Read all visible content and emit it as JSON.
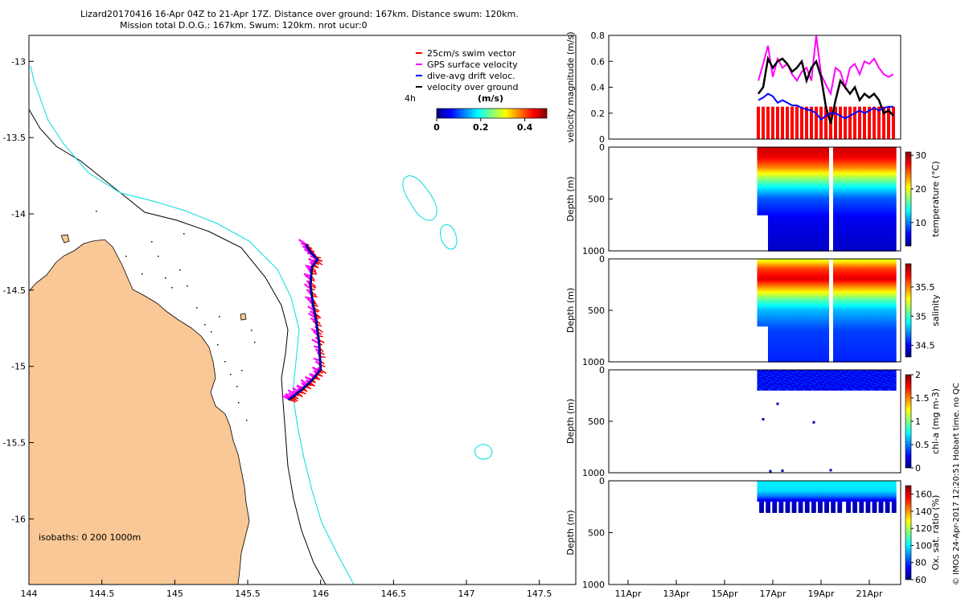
{
  "title": {
    "line1": "Lizard20170416 16-Apr 04Z to 21-Apr 17Z. Distance over ground: 167km. Distance swum: 120km.",
    "line2": "Mission total D.O.G.: 167km. Swum: 120km. nrot ucur:0"
  },
  "credit": "© IMOS 24-Apr-2017 12:20:51 Hobart time. no QC",
  "colors": {
    "land": "#f9c896",
    "coast": "#000000",
    "iso200": "#000000",
    "iso1000": "#00dddd",
    "swim": "#ff0000",
    "gps": "#ff00ff",
    "drift": "#0000ff",
    "vog": "#000000"
  },
  "chart_data": [
    {
      "id": "map",
      "type": "map",
      "x": [
        144,
        144.5,
        145,
        145.5,
        146,
        146.5,
        147,
        147.5
      ],
      "y": [
        -13,
        -13.5,
        -14,
        -14.5,
        -15,
        -15.5,
        -16
      ],
      "xlim": [
        144,
        147.75
      ],
      "ylim": [
        -16.43,
        -12.83
      ],
      "xtick_labels": [
        "144",
        "144.5",
        "145",
        "145.5",
        "146",
        "146.5",
        "147",
        "147.5"
      ],
      "ytick_labels": [
        "-13",
        "-13.5",
        "-14",
        "-14.5",
        "-15",
        "-15.5",
        "-16"
      ],
      "legend": {
        "items": [
          "25cm/s swim vector",
          "GPS surface velocity",
          "dive-avg drift veloc.",
          "velocity over ground"
        ],
        "scale_label": "4h",
        "colorbar_title": "(m/s)",
        "colorbar_ticks": [
          "0",
          "0.2",
          "0.4"
        ],
        "colorbar_range": [
          0,
          0.5
        ]
      },
      "isobath_label": "isobaths: 0   200  1000m",
      "track": {
        "lon": [
          145.9,
          145.93,
          145.98,
          145.94,
          145.93,
          145.95,
          145.97,
          145.99,
          146.0,
          145.96,
          145.91,
          145.86,
          145.81,
          145.78
        ],
        "lat": [
          -14.2,
          -14.25,
          -14.3,
          -14.35,
          -14.47,
          -14.6,
          -14.7,
          -14.85,
          -15.02,
          -15.07,
          -15.12,
          -15.16,
          -15.2,
          -15.22
        ]
      }
    },
    {
      "id": "velocity",
      "type": "line",
      "ylabel": "velocity magnitude (m/s)",
      "ylim": [
        0,
        0.8
      ],
      "yticks": [
        0,
        0.2,
        0.4,
        0.6,
        0.8
      ],
      "ytick_labels": [
        "0",
        "0.2",
        "0.4",
        "0.6",
        "0.8"
      ],
      "xlim": [
        10.2,
        22.3
      ],
      "x": [
        16.4,
        16.6,
        16.8,
        17.0,
        17.2,
        17.4,
        17.6,
        17.8,
        18.0,
        18.2,
        18.4,
        18.6,
        18.8,
        19.0,
        19.2,
        19.4,
        19.6,
        19.8,
        20.0,
        20.2,
        20.4,
        20.6,
        20.8,
        21.0,
        21.2,
        21.4,
        21.6,
        21.8,
        22.0
      ],
      "series": [
        {
          "name": "GPS surface velocity",
          "values": [
            0.45,
            0.58,
            0.72,
            0.48,
            0.62,
            0.55,
            0.58,
            0.5,
            0.45,
            0.52,
            0.55,
            0.45,
            0.8,
            0.5,
            0.42,
            0.35,
            0.55,
            0.52,
            0.4,
            0.55,
            0.58,
            0.5,
            0.6,
            0.58,
            0.62,
            0.55,
            0.5,
            0.48,
            0.5
          ]
        },
        {
          "name": "velocity over ground",
          "values": [
            0.35,
            0.4,
            0.62,
            0.55,
            0.6,
            0.62,
            0.58,
            0.52,
            0.55,
            0.6,
            0.45,
            0.55,
            0.6,
            0.48,
            0.25,
            0.12,
            0.3,
            0.45,
            0.4,
            0.35,
            0.4,
            0.3,
            0.35,
            0.32,
            0.35,
            0.3,
            0.2,
            0.22,
            0.18
          ]
        },
        {
          "name": "dive-avg drift veloc.",
          "values": [
            0.3,
            0.32,
            0.35,
            0.33,
            0.28,
            0.3,
            0.28,
            0.26,
            0.26,
            0.24,
            0.23,
            0.22,
            0.2,
            0.15,
            0.18,
            0.2,
            0.2,
            0.18,
            0.16,
            0.18,
            0.2,
            0.22,
            0.2,
            0.22,
            0.24,
            0.22,
            0.24,
            0.25,
            0.25
          ]
        },
        {
          "name": "25cm/s swim vector",
          "values": [
            0.25,
            0.25,
            0.25,
            0.25,
            0.25,
            0.25,
            0.25,
            0.25,
            0.25,
            0.25,
            0.25,
            0.25,
            0.25,
            0.25,
            0.25,
            0.25,
            0.25,
            0.25,
            0.25,
            0.25,
            0.25,
            0.25,
            0.25,
            0.25,
            0.25,
            0.25,
            0.25,
            0.25,
            0.25
          ]
        }
      ]
    },
    {
      "id": "temperature",
      "type": "scatter",
      "ylabel": "Depth (m)",
      "ylim": [
        1000,
        0
      ],
      "ytick_labels": [
        "0",
        "500",
        "1000"
      ],
      "yticks": [
        0,
        500,
        1000
      ],
      "colorbar_label": "temperature (°C)",
      "colorbar_range": [
        3,
        31
      ],
      "colorbar_ticks": [
        10,
        20,
        30
      ],
      "colorbar_tick_labels": [
        "10",
        "20",
        "30"
      ],
      "profile_start": 16.4,
      "profile_end": 22.1,
      "full_depth_from": 16.8,
      "shallow_depth": 650,
      "gaps": [
        19.3,
        19.5
      ],
      "depth_values": [
        [
          0,
          29
        ],
        [
          100,
          28
        ],
        [
          200,
          24
        ],
        [
          300,
          18
        ],
        [
          400,
          13
        ],
        [
          500,
          9
        ],
        [
          700,
          6
        ],
        [
          1000,
          5
        ]
      ]
    },
    {
      "id": "salinity",
      "type": "scatter",
      "ylabel": "Depth (m)",
      "ylim": [
        1000,
        0
      ],
      "ytick_labels": [
        "0",
        "500",
        "1000"
      ],
      "yticks": [
        0,
        500,
        1000
      ],
      "colorbar_label": "salinity",
      "colorbar_range": [
        34.3,
        35.9
      ],
      "colorbar_ticks": [
        34.5,
        35,
        35.5
      ],
      "colorbar_tick_labels": [
        "34.5",
        "35",
        "35.5"
      ],
      "profile_start": 16.4,
      "profile_end": 22.1,
      "full_depth_from": 16.8,
      "shallow_depth": 650,
      "gaps": [
        19.3,
        19.5
      ],
      "depth_values": [
        [
          0,
          35.2
        ],
        [
          100,
          35.6
        ],
        [
          200,
          35.75
        ],
        [
          300,
          35.4
        ],
        [
          400,
          35.05
        ],
        [
          500,
          34.8
        ],
        [
          700,
          34.6
        ],
        [
          1000,
          34.55
        ]
      ]
    },
    {
      "id": "chla",
      "type": "scatter",
      "ylabel": "Depth (m)",
      "ylim": [
        1000,
        0
      ],
      "ytick_labels": [
        "0",
        "500",
        "1000"
      ],
      "yticks": [
        0,
        500,
        1000
      ],
      "colorbar_label": "chl-a (mg m-3)",
      "colorbar_range": [
        0,
        2
      ],
      "colorbar_ticks": [
        0,
        0.5,
        1,
        1.5,
        2
      ],
      "colorbar_tick_labels": [
        "0",
        "0.5",
        "1",
        "1.5",
        "2"
      ],
      "profile_start": 16.4,
      "profile_end": 22.1,
      "max_depth": 200,
      "value": 0.15,
      "outliers": [
        [
          16.6,
          480
        ],
        [
          17.2,
          330
        ],
        [
          18.7,
          510
        ],
        [
          16.9,
          985
        ],
        [
          17.4,
          980
        ],
        [
          19.4,
          975
        ]
      ]
    },
    {
      "id": "oxsat",
      "type": "scatter",
      "ylabel": "Depth (m)",
      "ylim": [
        1000,
        0
      ],
      "ytick_labels": [
        "0",
        "500",
        "1000"
      ],
      "yticks": [
        0,
        500,
        1000
      ],
      "colorbar_label": "Ox. sat. ratio (%)",
      "colorbar_range": [
        60,
        170
      ],
      "colorbar_ticks": [
        60,
        80,
        100,
        120,
        140,
        160
      ],
      "colorbar_tick_labels": [
        "60",
        "80",
        "100",
        "120",
        "140",
        "160"
      ],
      "profile_start": 16.4,
      "profile_end": 22.1,
      "max_depth": 300,
      "depth_values": [
        [
          0,
          100
        ],
        [
          100,
          98
        ],
        [
          150,
          88
        ],
        [
          200,
          70
        ],
        [
          300,
          64
        ]
      ],
      "xtick_values": [
        11,
        13,
        15,
        17,
        19,
        21
      ],
      "xtick_labels": [
        "11Apr",
        "13Apr",
        "15Apr",
        "17Apr",
        "19Apr",
        "21Apr"
      ]
    }
  ]
}
